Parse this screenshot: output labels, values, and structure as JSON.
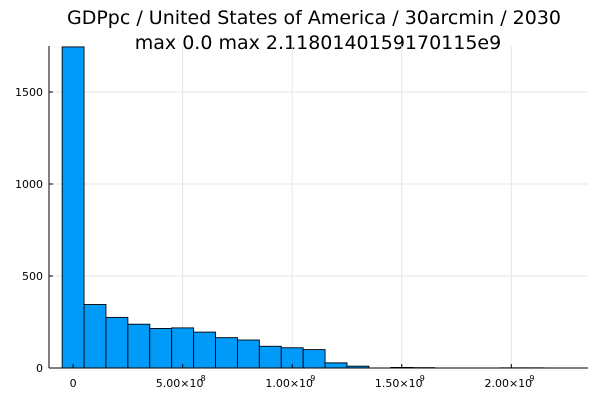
{
  "chart_data": {
    "type": "bar",
    "title_lines": [
      "GDPpc / United States of America / 30arcmin / 2030",
      "max 0.0  max 2.1180140159170115e9"
    ],
    "xlabel": "",
    "ylabel": "",
    "bin_edges": [
      -50000000.0,
      50000000.0,
      150000000.0,
      250000000.0,
      350000000.0,
      450000000.0,
      550000000.0,
      650000000.0,
      750000000.0,
      850000000.0,
      950000000.0,
      1050000000.0,
      1150000000.0,
      1250000000.0,
      1350000000.0,
      1450000000.0,
      1550000000.0,
      1650000000.0,
      1750000000.0,
      1850000000.0,
      1950000000.0,
      2050000000.0,
      2150000000.0
    ],
    "counts": [
      1745,
      345,
      275,
      238,
      215,
      218,
      195,
      165,
      152,
      118,
      110,
      100,
      28,
      10,
      0,
      3,
      2,
      0,
      0,
      0,
      1,
      1
    ],
    "xlim": [
      -110000000.0,
      2350000000.0
    ],
    "ylim": [
      0,
      1750
    ],
    "x_ticks": [
      {
        "value": 0,
        "label": "0",
        "exp": ""
      },
      {
        "value": 500000000.0,
        "label": "5.00×10",
        "exp": "8"
      },
      {
        "value": 1000000000.0,
        "label": "1.00×10",
        "exp": "9"
      },
      {
        "value": 1500000000.0,
        "label": "1.50×10",
        "exp": "9"
      },
      {
        "value": 2000000000.0,
        "label": "2.00×10",
        "exp": "9"
      }
    ],
    "y_ticks": [
      {
        "value": 0,
        "label": "0"
      },
      {
        "value": 500,
        "label": "500"
      },
      {
        "value": 1000,
        "label": "1000"
      },
      {
        "value": 1500,
        "label": "1500"
      }
    ],
    "grid": true,
    "legend": "none",
    "colors": {
      "bar_fill": "#009af9",
      "bar_edge": "#000000"
    }
  }
}
